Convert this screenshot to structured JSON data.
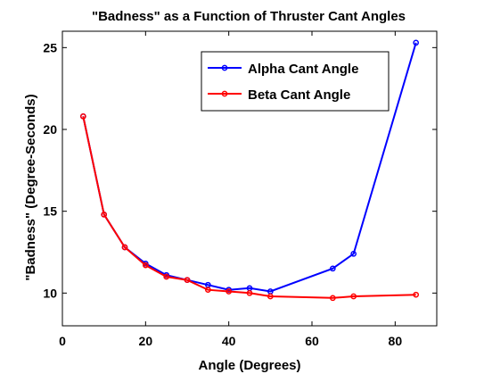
{
  "chart_data": {
    "type": "line",
    "title": "\"Badness\" as a Function of Thruster Cant Angles",
    "xlabel": "Angle (Degrees)",
    "ylabel": "\"Badness\" (Degree-Seconds)",
    "xlim": [
      0,
      90
    ],
    "ylim": [
      8,
      26
    ],
    "xticks": [
      0,
      20,
      40,
      60,
      80
    ],
    "yticks": [
      10,
      15,
      20,
      25
    ],
    "grid": false,
    "legend_position": "top-right",
    "series": [
      {
        "name": "Alpha Cant Angle",
        "color": "#0000ff",
        "x": [
          5,
          10,
          15,
          20,
          25,
          30,
          35,
          40,
          45,
          50,
          65,
          70,
          85
        ],
        "y": [
          20.8,
          14.8,
          12.8,
          11.8,
          11.1,
          10.8,
          10.5,
          10.2,
          10.3,
          10.1,
          11.5,
          12.4,
          25.3
        ]
      },
      {
        "name": "Beta Cant Angle",
        "color": "#ff0000",
        "x": [
          5,
          10,
          15,
          20,
          25,
          30,
          35,
          40,
          45,
          50,
          65,
          70,
          85
        ],
        "y": [
          20.8,
          14.8,
          12.8,
          11.7,
          11.0,
          10.8,
          10.2,
          10.1,
          10.0,
          9.8,
          9.7,
          9.8,
          9.9
        ]
      }
    ]
  }
}
